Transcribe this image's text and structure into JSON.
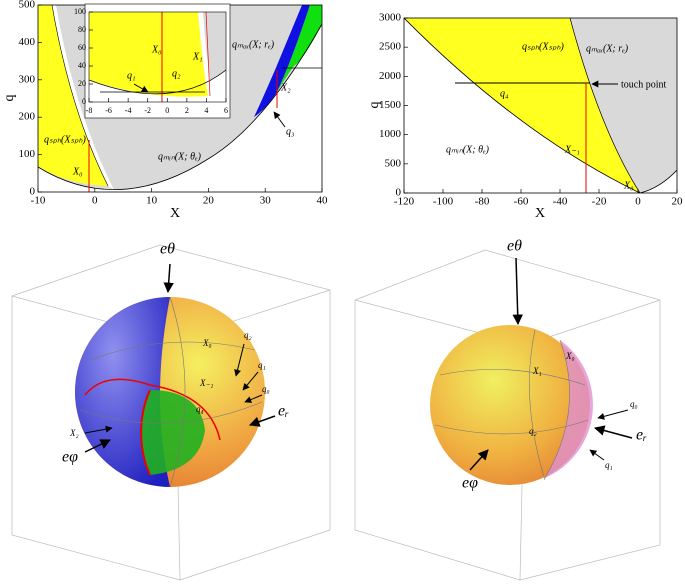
{
  "panels": [
    {
      "xlabel": "X",
      "ylabel": "q",
      "xlim": [
        -10,
        40
      ],
      "ylim": [
        0,
        500
      ],
      "xticks": [
        -10,
        0,
        10,
        20,
        30,
        40
      ],
      "yticks": [
        0,
        100,
        200,
        300,
        400,
        500
      ],
      "labels": [
        "qₘₐₓ(X; rₑ)",
        "qₛₚₕ(Xₛₚₕ)",
        "X₀",
        "qₘᵢₙ(X; θₑ)",
        "q₃",
        "X₂"
      ],
      "inset": {
        "xlim": [
          -8,
          6
        ],
        "ylim": [
          0,
          100
        ],
        "xticks": [
          -8,
          -6,
          -4,
          -2,
          0,
          2,
          4,
          6
        ],
        "yticks": [
          0,
          20,
          40,
          60,
          80,
          100
        ],
        "labels": [
          "X₀",
          "X₁",
          "q₁",
          "q₂"
        ]
      }
    },
    {
      "xlabel": "X",
      "ylabel": "q",
      "xlim": [
        -120,
        20
      ],
      "ylim": [
        0,
        3000
      ],
      "xticks": [
        -120,
        -100,
        -80,
        -60,
        -40,
        -20,
        0,
        20
      ],
      "yticks": [
        0,
        500,
        1000,
        1500,
        2000,
        2500,
        3000
      ],
      "labels": [
        "qₛₚₕ(Xₛₚₕ)",
        "qₘₐₓ(X; rₑ)",
        "touch point",
        "q₄",
        "qₘᵢₙ(X; θₑ)",
        "X₋₁",
        "X₀"
      ]
    }
  ],
  "spheres": [
    {
      "labels": [
        "eθ",
        "X₀",
        "q₂",
        "q₁",
        "q₀",
        "eᵣ",
        "X₋₁",
        "q₄",
        "X₂",
        "eφ"
      ]
    },
    {
      "labels": [
        "eθ",
        "X₀",
        "X₁",
        "q₂",
        "q₀",
        "eᵣ",
        "q₁",
        "eφ"
      ]
    }
  ]
}
